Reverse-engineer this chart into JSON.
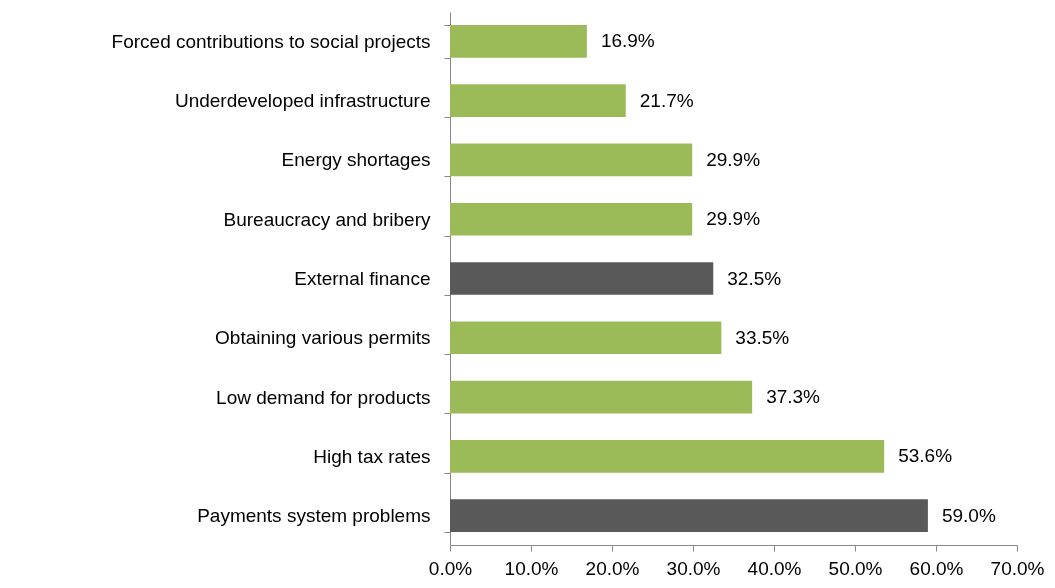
{
  "chart_data": {
    "type": "bar",
    "orientation": "horizontal",
    "categories": [
      "Forced contributions to social projects",
      "Underdeveloped infrastructure",
      "Energy shortages",
      "Bureaucracy and bribery",
      "External finance",
      "Obtaining various permits",
      "Low demand for products",
      "High tax rates",
      "Payments system problems"
    ],
    "values": [
      16.9,
      21.7,
      29.9,
      29.9,
      32.5,
      33.5,
      37.3,
      53.6,
      59.0
    ],
    "colors": [
      "#9bbb59",
      "#9bbb59",
      "#9bbb59",
      "#9bbb59",
      "#595959",
      "#9bbb59",
      "#9bbb59",
      "#9bbb59",
      "#595959"
    ],
    "value_labels": [
      "16.9%",
      "21.7%",
      "29.9%",
      "29.9%",
      "32.5%",
      "33.5%",
      "37.3%",
      "53.6%",
      "59.0%"
    ],
    "xlim": [
      0,
      70
    ],
    "xticks": [
      {
        "value": 0,
        "label": "0.0%"
      },
      {
        "value": 10,
        "label": "10.0%"
      },
      {
        "value": 20,
        "label": "20.0%"
      },
      {
        "value": 30,
        "label": "30.0%"
      },
      {
        "value": 40,
        "label": "40.0%"
      },
      {
        "value": 50,
        "label": "50.0%"
      },
      {
        "value": 60,
        "label": "60.0%"
      },
      {
        "value": 70,
        "label": "70.0%"
      }
    ],
    "grid": false
  }
}
